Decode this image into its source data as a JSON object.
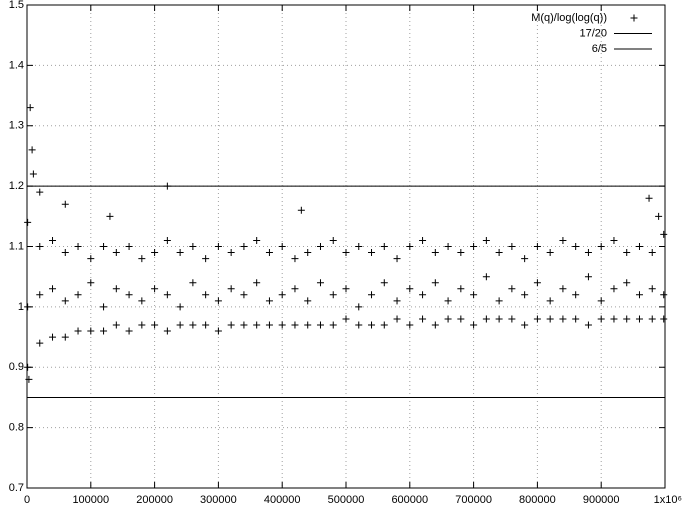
{
  "chart_data": {
    "type": "scatter",
    "xlim": [
      0,
      1000000
    ],
    "ylim": [
      0.7,
      1.5
    ],
    "xticks": [
      0,
      100000,
      200000,
      300000,
      400000,
      500000,
      600000,
      700000,
      800000,
      900000,
      {
        "value": 1000000,
        "label": "1x10⁶"
      }
    ],
    "yticks": [
      0.7,
      0.8,
      0.9,
      1,
      1.1,
      1.2,
      1.3,
      1.4,
      1.5
    ],
    "grid": true,
    "legend": "top-right",
    "series": [
      {
        "name": "M(q)/log(log(q))",
        "mode": "points",
        "color": "#000000",
        "x": [
          1000,
          20000,
          40000,
          60000,
          80000,
          100000,
          120000,
          140000,
          160000,
          180000,
          200000,
          220000,
          240000,
          260000,
          280000,
          300000,
          320000,
          340000,
          360000,
          380000,
          400000,
          420000,
          440000,
          460000,
          480000,
          500000,
          520000,
          540000,
          560000,
          580000,
          600000,
          620000,
          640000,
          660000,
          680000,
          700000,
          720000,
          740000,
          760000,
          780000,
          800000,
          820000,
          840000,
          860000,
          880000,
          900000,
          920000,
          940000,
          960000,
          980000,
          998000,
          1000,
          20000,
          40000,
          60000,
          80000,
          100000,
          120000,
          140000,
          160000,
          180000,
          200000,
          220000,
          240000,
          260000,
          280000,
          300000,
          320000,
          340000,
          360000,
          380000,
          400000,
          420000,
          440000,
          460000,
          480000,
          500000,
          520000,
          540000,
          560000,
          580000,
          600000,
          620000,
          640000,
          660000,
          680000,
          700000,
          720000,
          740000,
          760000,
          780000,
          800000,
          820000,
          840000,
          860000,
          880000,
          900000,
          920000,
          940000,
          960000,
          980000,
          998000,
          1000,
          20000,
          40000,
          60000,
          80000,
          100000,
          120000,
          140000,
          160000,
          180000,
          200000,
          220000,
          240000,
          260000,
          280000,
          300000,
          320000,
          340000,
          360000,
          380000,
          400000,
          420000,
          440000,
          460000,
          480000,
          500000,
          520000,
          540000,
          560000,
          580000,
          600000,
          620000,
          640000,
          660000,
          680000,
          700000,
          720000,
          740000,
          760000,
          780000,
          800000,
          820000,
          840000,
          860000,
          880000,
          900000,
          920000,
          940000,
          960000,
          980000,
          998000,
          3000,
          5000,
          8000,
          10000,
          20000,
          60000,
          130000,
          220000,
          430000,
          975000,
          990000
        ],
        "values": [
          1.14,
          1.1,
          1.11,
          1.09,
          1.1,
          1.08,
          1.1,
          1.09,
          1.1,
          1.08,
          1.09,
          1.11,
          1.09,
          1.1,
          1.08,
          1.1,
          1.09,
          1.1,
          1.11,
          1.09,
          1.1,
          1.08,
          1.09,
          1.1,
          1.11,
          1.09,
          1.1,
          1.09,
          1.1,
          1.08,
          1.1,
          1.11,
          1.09,
          1.1,
          1.09,
          1.1,
          1.11,
          1.09,
          1.1,
          1.08,
          1.1,
          1.09,
          1.11,
          1.1,
          1.09,
          1.1,
          1.11,
          1.09,
          1.1,
          1.09,
          1.12,
          1.0,
          1.02,
          1.03,
          1.01,
          1.02,
          1.04,
          1.0,
          1.03,
          1.02,
          1.01,
          1.03,
          1.02,
          1.0,
          1.04,
          1.02,
          1.01,
          1.03,
          1.02,
          1.04,
          1.01,
          1.02,
          1.03,
          1.01,
          1.04,
          1.02,
          1.03,
          1.0,
          1.02,
          1.04,
          1.01,
          1.03,
          1.02,
          1.04,
          1.01,
          1.03,
          1.02,
          1.05,
          1.01,
          1.03,
          1.02,
          1.04,
          1.01,
          1.03,
          1.02,
          1.05,
          1.01,
          1.03,
          1.04,
          1.02,
          1.03,
          1.02,
          0.9,
          0.94,
          0.95,
          0.95,
          0.96,
          0.96,
          0.96,
          0.97,
          0.96,
          0.97,
          0.97,
          0.96,
          0.97,
          0.97,
          0.97,
          0.96,
          0.97,
          0.97,
          0.97,
          0.97,
          0.97,
          0.97,
          0.97,
          0.97,
          0.97,
          0.98,
          0.97,
          0.97,
          0.97,
          0.98,
          0.97,
          0.98,
          0.97,
          0.98,
          0.98,
          0.97,
          0.98,
          0.98,
          0.98,
          0.97,
          0.98,
          0.98,
          0.98,
          0.98,
          0.97,
          0.98,
          0.98,
          0.98,
          0.98,
          0.98,
          0.98,
          0.88,
          1.33,
          1.26,
          1.22,
          1.19,
          1.17,
          1.15,
          1.2,
          1.16,
          1.18,
          1.15
        ]
      },
      {
        "name": "17/20",
        "mode": "lines",
        "color": "#000000",
        "x": [
          0,
          1000000
        ],
        "values": [
          0.85,
          0.85
        ]
      },
      {
        "name": "6/5",
        "mode": "lines",
        "color": "#000000",
        "x": [
          0,
          1000000
        ],
        "values": [
          1.2,
          1.2
        ]
      }
    ]
  }
}
